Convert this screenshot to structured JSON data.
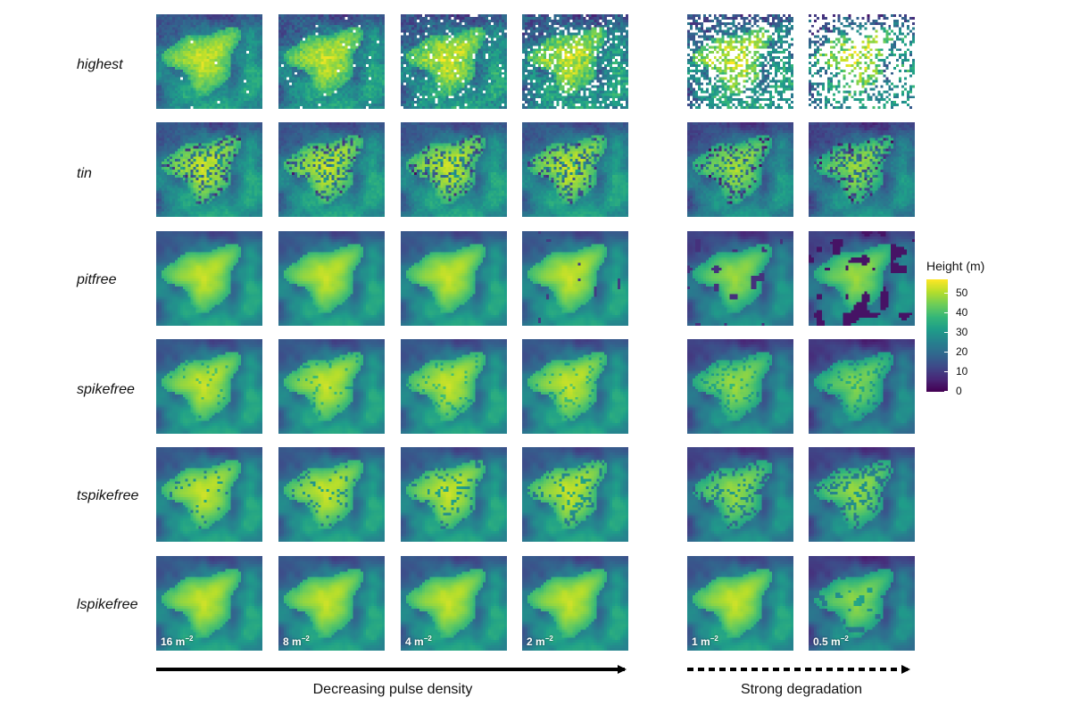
{
  "rows": [
    "highest",
    "tin",
    "pitfree",
    "spikefree",
    "tspikefree",
    "lspikefree"
  ],
  "densities": [
    {
      "value": "16 m",
      "exp": "−2"
    },
    {
      "value": "8 m",
      "exp": "−2"
    },
    {
      "value": "4 m",
      "exp": "−2"
    },
    {
      "value": "2 m",
      "exp": "−2"
    },
    {
      "value": "1 m",
      "exp": "−2"
    },
    {
      "value": "0.5 m",
      "exp": "−2"
    }
  ],
  "legend": {
    "title": "Height (m)",
    "ticks": [
      "50",
      "40",
      "30",
      "20",
      "10",
      "0"
    ],
    "range": [
      0,
      57
    ],
    "colormap": "viridis"
  },
  "axis_labels": {
    "decreasing": "Decreasing pulse density",
    "degradation": "Strong degradation"
  }
}
